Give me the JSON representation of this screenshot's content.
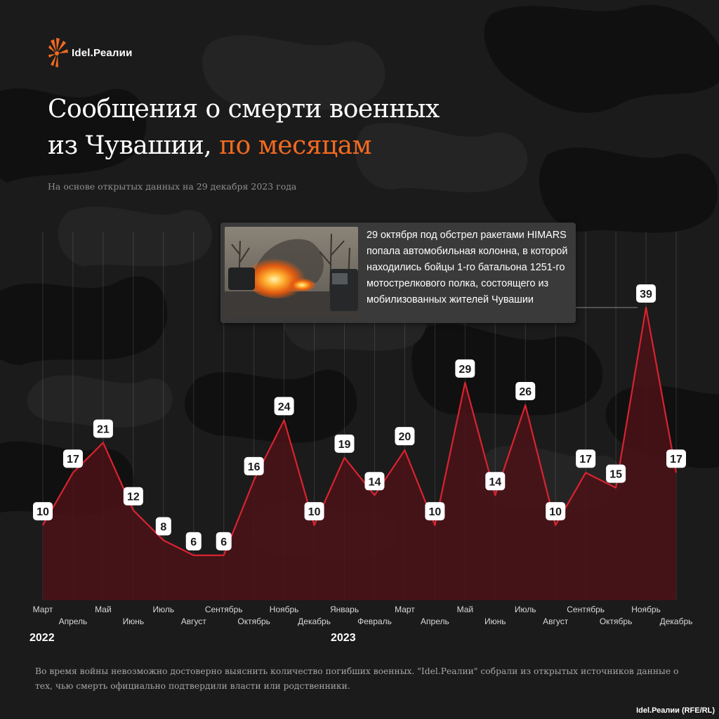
{
  "brand": {
    "name": "Idel.Реалии"
  },
  "title": {
    "line1": "Сообщения о смерти военных",
    "line2_plain": "из Чувашии, ",
    "line2_accent": "по месяцам"
  },
  "subtitle": "На основе открытых данных на 29 декабря 2023 года",
  "annotation": {
    "text": "29 октября под обстрел ракетами HIMARS попала автомобильная колонна, в которой находились бойцы 1-го батальона 1251-го мотострелкового полка, состоящего из мобилизованных жителей Чувашии"
  },
  "years": {
    "first": "2022",
    "second": "2023"
  },
  "footnote": "Во время войны невозможно достоверно выяснить количество погибших военных. \"Idel.Реалии\" собрали из открытых источников данные о тех, чью смерть официально подтвердили власти или родственники.",
  "credit": "Idel.Реалии (RFE/RL)",
  "colors": {
    "background": "#1b1b1b",
    "accent": "#f26a21",
    "line": "#d9232f",
    "area": "#4a1218",
    "label_bg": "#ffffff",
    "label_text": "#1b1b1b",
    "muted_text": "#8e8e8e"
  },
  "chart_data": {
    "type": "area",
    "title": "Сообщения о смерти военных из Чувашии, по месяцам",
    "xlabel": "",
    "ylabel": "",
    "grid": "vertical",
    "categories": [
      "Март",
      "Апрель",
      "Май",
      "Июнь",
      "Июль",
      "Август",
      "Сентябрь",
      "Октябрь",
      "Ноябрь",
      "Декабрь",
      "Январь",
      "Февраль",
      "Март",
      "Апрель",
      "Май",
      "Июнь",
      "Июль",
      "Август",
      "Сентябрь",
      "Октябрь",
      "Ноябрь",
      "Декабрь"
    ],
    "series": [
      {
        "values": [
          10,
          17,
          21,
          12,
          8,
          6,
          6,
          16,
          24,
          10,
          19,
          14,
          20,
          10,
          29,
          14,
          26,
          10,
          17,
          15,
          39,
          17
        ]
      }
    ],
    "ylim": [
      0,
      39
    ]
  }
}
